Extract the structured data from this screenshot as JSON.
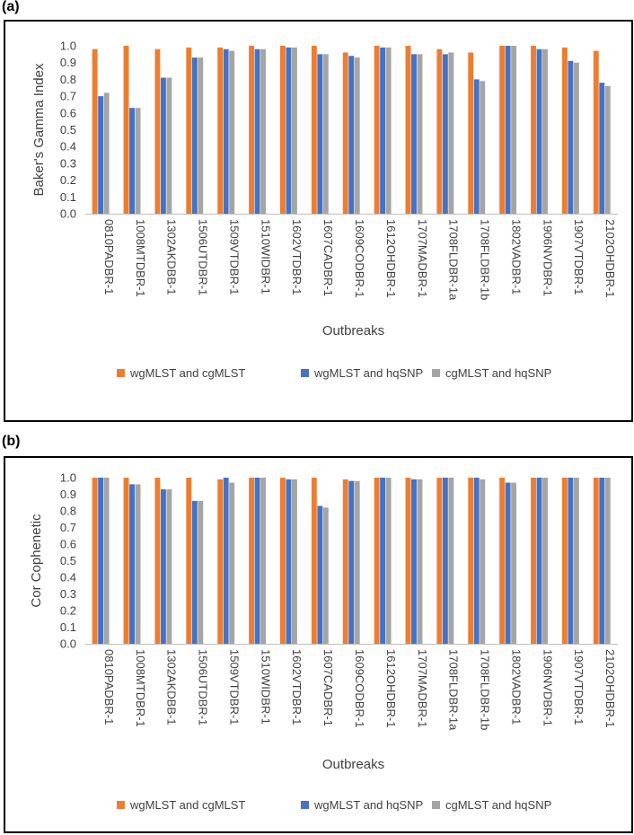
{
  "figure": {
    "panels": [
      {
        "label": "(a)"
      },
      {
        "label": "(b)"
      }
    ]
  },
  "chart_data": [
    {
      "type": "bar",
      "panel": "(a)",
      "title": "",
      "xlabel": "Outbreaks",
      "ylabel": "Baker's Gamma Index",
      "ylim": [
        0,
        1.0
      ],
      "yticks": [
        "0.0",
        "0.1",
        "0.2",
        "0.3",
        "0.4",
        "0.5",
        "0.6",
        "0.7",
        "0.8",
        "0.9",
        "1.0"
      ],
      "grid": false,
      "legend_position": "bottom",
      "categories": [
        "0810PADBR-1",
        "1008MTDBR-1",
        "1302AKDBB-1",
        "1506UTDBR-1",
        "1509VTDBR-1",
        "1510WIDBR-1",
        "1602VTDBR-1",
        "1607CADBR-1",
        "1609CODBR-1",
        "1612OHDBR-1",
        "1707MADBR-1",
        "1708FLDBR-1a",
        "1708FLDBR-1b",
        "1802VADBR-1",
        "1906NVDBR-1",
        "1907VTDBR-1",
        "2102OHDBR-1"
      ],
      "series": [
        {
          "name": "wgMLST and cgMLST",
          "color": "#ED7D31",
          "values": [
            0.98,
            1.0,
            0.98,
            0.99,
            0.99,
            1.0,
            1.0,
            1.0,
            0.96,
            1.0,
            1.0,
            0.98,
            0.96,
            1.0,
            1.0,
            0.99,
            0.97
          ]
        },
        {
          "name": "wgMLST and hqSNP",
          "color": "#4472C4",
          "values": [
            0.7,
            0.63,
            0.81,
            0.93,
            0.98,
            0.98,
            0.99,
            0.95,
            0.94,
            0.99,
            0.95,
            0.95,
            0.8,
            1.0,
            0.98,
            0.91,
            0.78
          ]
        },
        {
          "name": "cgMLST and hqSNP",
          "color": "#A5A5A5",
          "values": [
            0.72,
            0.63,
            0.81,
            0.93,
            0.97,
            0.98,
            0.99,
            0.95,
            0.93,
            0.99,
            0.95,
            0.96,
            0.79,
            1.0,
            0.98,
            0.9,
            0.76
          ]
        }
      ]
    },
    {
      "type": "bar",
      "panel": "(b)",
      "title": "",
      "xlabel": "Outbreaks",
      "ylabel": "Cor Cophenetic",
      "ylim": [
        0,
        1.0
      ],
      "yticks": [
        "0.0",
        "0.1",
        "0.2",
        "0.3",
        "0.4",
        "0.5",
        "0.6",
        "0.7",
        "0.8",
        "0.9",
        "1.0"
      ],
      "grid": false,
      "legend_position": "bottom",
      "categories": [
        "0810PADBR-1",
        "1008MTDBR-1",
        "1302AKDBB-1",
        "1506UTDBR-1",
        "1509VTDBR-1",
        "1510WIDBR-1",
        "1602VTDBR-1",
        "1607CADBR-1",
        "1609CODBR-1",
        "1612OHDBR-1",
        "1707MADBR-1",
        "1708FLDBR-1a",
        "1708FLDBR-1b",
        "1802VADBR-1",
        "1906NVDBR-1",
        "1907VTDBR-1",
        "2102OHDBR-1"
      ],
      "series": [
        {
          "name": "wgMLST and cgMLST",
          "color": "#ED7D31",
          "values": [
            1.0,
            1.0,
            1.0,
            1.0,
            0.99,
            1.0,
            1.0,
            1.0,
            0.99,
            1.0,
            1.0,
            1.0,
            1.0,
            1.0,
            1.0,
            1.0,
            1.0
          ]
        },
        {
          "name": "wgMLST and hqSNP",
          "color": "#4472C4",
          "values": [
            1.0,
            0.96,
            0.93,
            0.86,
            1.0,
            1.0,
            0.99,
            0.83,
            0.98,
            1.0,
            0.99,
            1.0,
            1.0,
            0.97,
            1.0,
            1.0,
            1.0
          ]
        },
        {
          "name": "cgMLST and hqSNP",
          "color": "#A5A5A5",
          "values": [
            1.0,
            0.96,
            0.93,
            0.86,
            0.97,
            1.0,
            0.99,
            0.82,
            0.98,
            1.0,
            0.99,
            1.0,
            0.99,
            0.97,
            1.0,
            1.0,
            1.0
          ]
        }
      ]
    }
  ]
}
